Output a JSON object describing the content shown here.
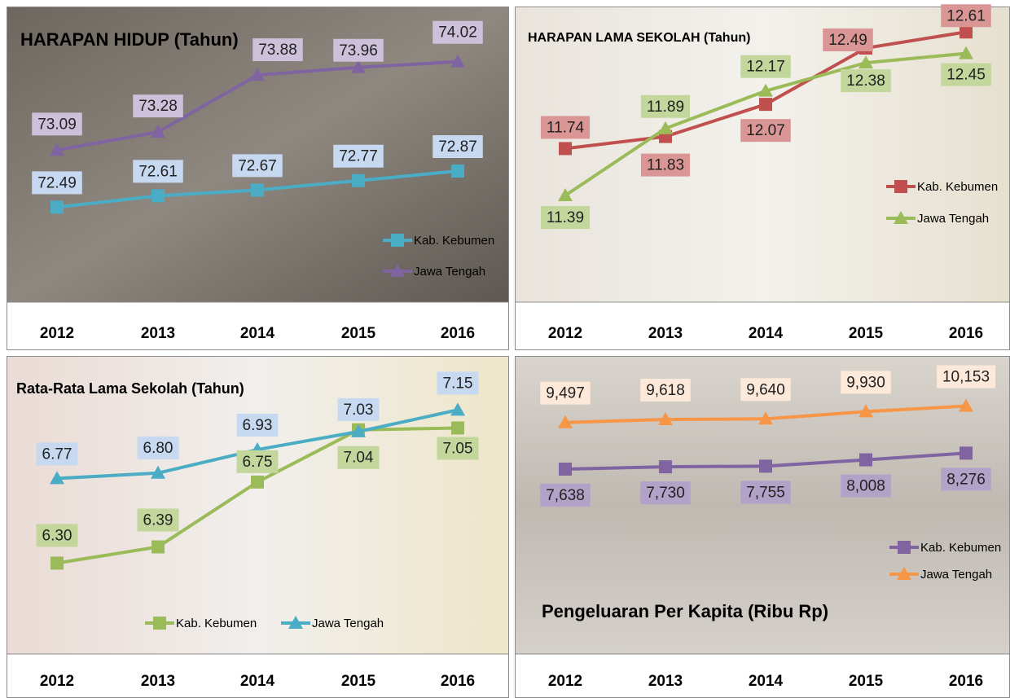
{
  "chart_data": [
    {
      "type": "line",
      "title": "HARAPAN HIDUP (Tahun)",
      "categories": [
        "2012",
        "2013",
        "2014",
        "2015",
        "2016"
      ],
      "ylim": [
        71.5,
        74.6
      ],
      "series": [
        {
          "name": "Kab. Kebumen",
          "color": "#4bacc6",
          "values": [
            72.49,
            72.61,
            72.67,
            72.77,
            72.87
          ]
        },
        {
          "name": "Jawa Tengah",
          "color": "#8064a2",
          "values": [
            73.09,
            73.28,
            73.88,
            73.96,
            74.02
          ]
        }
      ]
    },
    {
      "type": "line",
      "title": "HARAPAN LAMA SEKOLAH (Tahun)",
      "categories": [
        "2012",
        "2013",
        "2014",
        "2015",
        "2016"
      ],
      "ylim": [
        10.6,
        12.8
      ],
      "series": [
        {
          "name": "Kab. Kebumen",
          "color": "#c0504d",
          "values": [
            11.74,
            11.83,
            12.07,
            12.49,
            12.61
          ]
        },
        {
          "name": "Jawa Tengah",
          "color": "#9bbb59",
          "values": [
            11.39,
            11.89,
            12.17,
            12.38,
            12.45
          ]
        }
      ]
    },
    {
      "type": "line",
      "title": "Rata-Rata Lama Sekolah (Tahun)",
      "categories": [
        "2012",
        "2013",
        "2014",
        "2015",
        "2016"
      ],
      "ylim": [
        5.8,
        7.45
      ],
      "series": [
        {
          "name": "Kab. Kebumen",
          "color": "#9bbb59",
          "values": [
            6.3,
            6.39,
            6.75,
            7.04,
            7.05
          ],
          "value_labels": [
            "6.30",
            "6.39",
            "6.75",
            "7.04",
            "7.05"
          ]
        },
        {
          "name": "Jawa Tengah",
          "color": "#4bacc6",
          "values": [
            6.77,
            6.8,
            6.93,
            7.03,
            7.15
          ],
          "value_labels": [
            "6.77",
            "6.80",
            "6.93",
            "7.03",
            "7.15"
          ]
        }
      ]
    },
    {
      "type": "line",
      "title": "Pengeluaran Per Kapita (Ribu Rp)",
      "categories": [
        "2012",
        "2013",
        "2014",
        "2015",
        "2016"
      ],
      "ylim": [
        300,
        12150
      ],
      "series": [
        {
          "name": "Kab. Kebumen",
          "color": "#8064a2",
          "values": [
            7638,
            7730,
            7755,
            8008,
            8276
          ],
          "value_labels": [
            "7,638",
            "7,730",
            "7,755",
            "8,008",
            "8,276"
          ]
        },
        {
          "name": "Jawa Tengah",
          "color": "#f79646",
          "values": [
            9497,
            9618,
            9640,
            9930,
            10153
          ],
          "value_labels": [
            "9,497",
            "9,618",
            "9,640",
            "9,930",
            "10,153"
          ]
        }
      ]
    }
  ]
}
